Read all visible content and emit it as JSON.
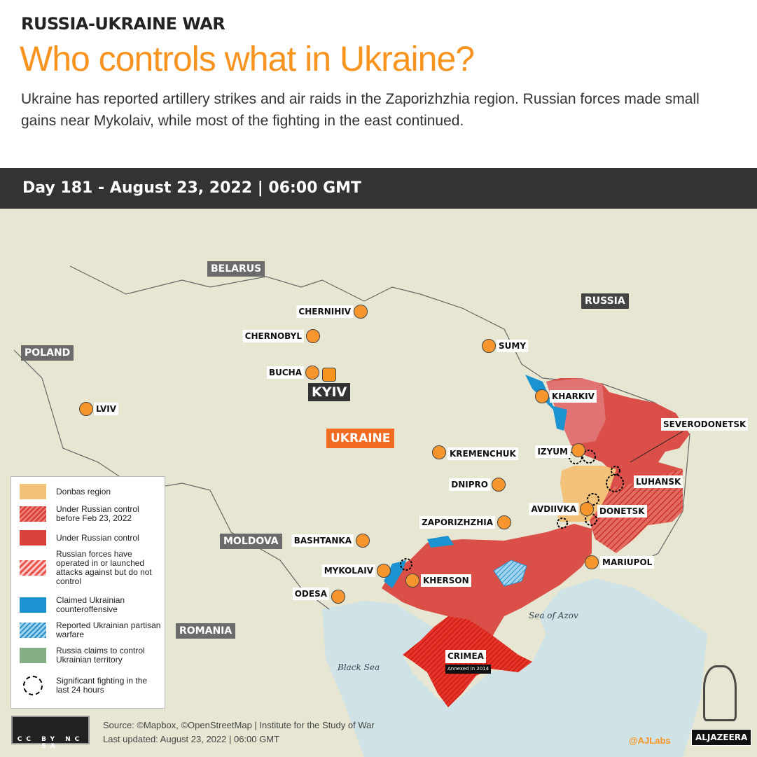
{
  "header": {
    "kicker": "RUSSIA-UKRAINE WAR",
    "title": "Who controls what in Ukraine?",
    "subtitle": "Ukraine has reported artillery strikes and air raids in the Zaporizhzhia region. Russian forces made small gains near Mykolaiv, while most of the fighting in the east continued.",
    "date_bar": "Day 181 - August 23, 2022 | 06:00 GMT"
  },
  "countries": {
    "belarus": "BELARUS",
    "russia": "RUSSIA",
    "poland": "POLAND",
    "moldova": "MOLDOVA",
    "romania": "ROMANIA",
    "ukraine": "UKRAINE"
  },
  "cities": {
    "chernihiv": "CHERNIHIV",
    "chernobyl": "CHERNOBYL",
    "sumy": "SUMY",
    "bucha": "BUCHA",
    "kyiv": "KYIV",
    "lviv": "LVIV",
    "kharkiv": "KHARKIV",
    "kremenchuk": "KREMENCHUK",
    "izyum": "IZYUM",
    "severodonetsk": "SEVERODONETSK",
    "luhansk": "LUHANSK",
    "dnipro": "DNIPRO",
    "avdiivka": "AVDIIVKA",
    "donetsk": "DONETSK",
    "zaporizhzhia": "ZAPORIZHZHIA",
    "bashtanka": "BASHTANKA",
    "mariupol": "MARIUPOL",
    "mykolaiv": "MYKOLAIV",
    "kherson": "KHERSON",
    "odesa": "ODESA",
    "crimea": "CRIMEA",
    "crimea_note": "Annexed in 2014"
  },
  "seas": {
    "azov": "Sea of Azov",
    "black": "Black Sea"
  },
  "legend": [
    {
      "label": "Donbas region",
      "color": "#f3c27a"
    },
    {
      "label": "Under Russian control before Feb 23, 2022",
      "color": "#d9433c"
    },
    {
      "label": "Under Russian control",
      "color": "#d9433c"
    },
    {
      "label": "Russian forces have operated in or launched attacks against but do not control",
      "color": "#e8564e"
    },
    {
      "label": "Claimed Ukrainian counteroffensive",
      "color": "#1b93d0"
    },
    {
      "label": "Reported Ukrainian partisan warfare",
      "color": "#3aa6dc"
    },
    {
      "label": "Russia claims to control Ukrainian territory",
      "color": "#86ad84"
    },
    {
      "label": "Significant fighting in the last 24 hours",
      "color": "#000000"
    }
  ],
  "footer": {
    "license": "CC BY NC SA",
    "source": "Source: ©Mapbox, ©OpenStreetMap  |  Institute for the Study of War",
    "updated": "Last updated: August 23, 2022  |   06:00 GMT",
    "handle": "@AJLabs",
    "brand": "ALJAZEERA"
  },
  "colors": {
    "accent": "#f7931e",
    "russian_control": "#d9433c",
    "ukraine_counter": "#1b93d0",
    "donbas": "#f3c27a"
  }
}
